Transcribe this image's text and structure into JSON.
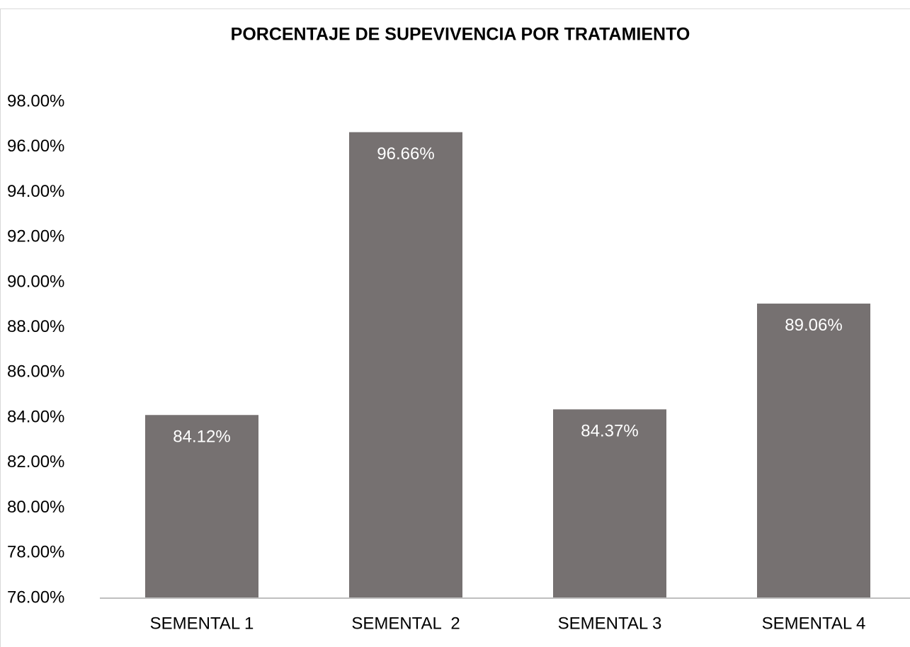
{
  "chart_data": {
    "type": "bar",
    "title": "PORCENTAJE DE SUPEVIVENCIA POR TRATAMIENTO",
    "categories": [
      "SEMENTAL 1",
      "SEMENTAL  2",
      "SEMENTAL 3",
      "SEMENTAL 4"
    ],
    "values": [
      84.12,
      96.66,
      84.37,
      89.06
    ],
    "value_labels": [
      "84.12%",
      "96.66%",
      "84.37%",
      "89.06%"
    ],
    "color": "#767171",
    "ylim": [
      76,
      98
    ],
    "yticks": [
      {
        "value": 76,
        "label": "76.00%"
      },
      {
        "value": 78,
        "label": "78.00%"
      },
      {
        "value": 80,
        "label": "80.00%"
      },
      {
        "value": 82,
        "label": "82.00%"
      },
      {
        "value": 84,
        "label": "84.00%"
      },
      {
        "value": 86,
        "label": "86.00%"
      },
      {
        "value": 88,
        "label": "88.00%"
      },
      {
        "value": 90,
        "label": "90.00%"
      },
      {
        "value": 92,
        "label": "92.00%"
      },
      {
        "value": 94,
        "label": "94.00%"
      },
      {
        "value": 96,
        "label": "96.00%"
      },
      {
        "value": 98,
        "label": "98.00%"
      }
    ],
    "grid": false
  }
}
